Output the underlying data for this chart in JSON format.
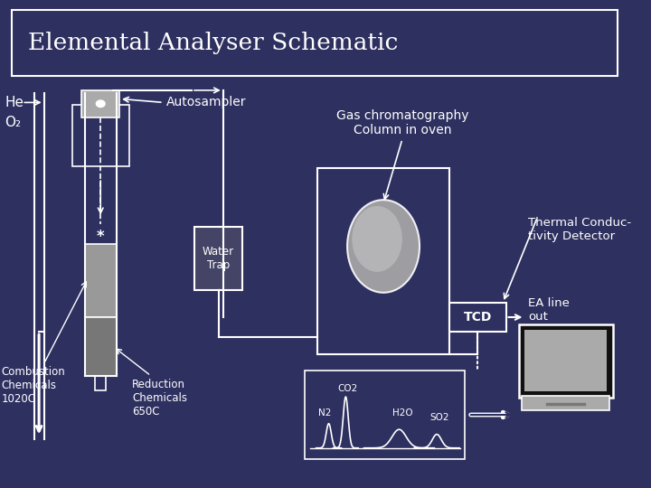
{
  "title": "Elemental Analyser Schematic",
  "bg_color": "#2E3060",
  "fg_color": "white",
  "gray_color": "#AAAAAA",
  "dark_gray": "#444466",
  "labels": {
    "he": "He",
    "o2": "O₂",
    "autosampler": "Autosampler",
    "gc_column": "Gas chromatography\nColumn in oven",
    "thermal": "Thermal Conduc-\ntivity Detector",
    "ea_line": "EA line\nout",
    "water_trap": "Water\nTrap",
    "combustion": "Combustion\nChemicals\n1020C",
    "reduction": "Reduction\nChemicals\n650C",
    "tcd": "TCD",
    "n2": "N2",
    "co2": "CO2",
    "h2o": "H2O",
    "so2": "SO2"
  }
}
